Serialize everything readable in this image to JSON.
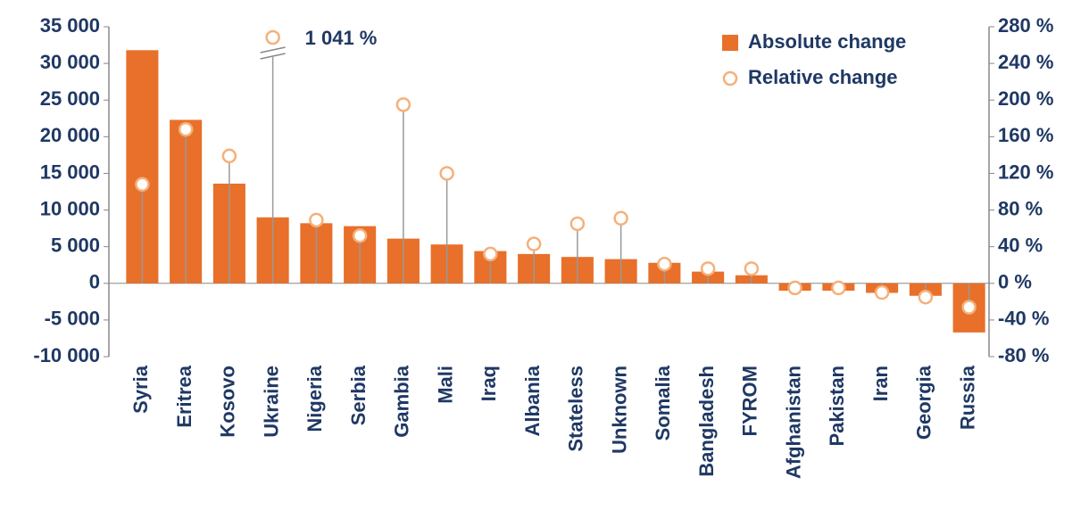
{
  "chart_data": {
    "type": "bar",
    "categories": [
      "Syria",
      "Eritrea",
      "Kosovo",
      "Ukraine",
      "Nigeria",
      "Serbia",
      "Gambia",
      "Mali",
      "Iraq",
      "Albania",
      "Stateless",
      "Unknown",
      "Somalia",
      "Bangladesh",
      "FYROM",
      "Afghanistan",
      "Pakistan",
      "Iran",
      "Georgia",
      "Russia"
    ],
    "series": [
      {
        "name": "Absolute change",
        "color": "#e8702a",
        "values": [
          31800,
          22300,
          13600,
          9000,
          8200,
          7800,
          6100,
          5300,
          4400,
          4000,
          3600,
          3300,
          2800,
          1600,
          1100,
          -1000,
          -1000,
          -1300,
          -1700,
          -6700
        ]
      },
      {
        "name": "Relative change",
        "color": "#f5b07a",
        "axis": "y2",
        "type": "scatter",
        "values": [
          108,
          168,
          139,
          1041,
          69,
          52,
          195,
          120,
          32,
          43,
          65,
          71,
          21,
          16,
          16,
          -5,
          -5,
          -10,
          -15,
          -26
        ],
        "value_labels": [
          null,
          null,
          null,
          "1 041 %",
          null,
          null,
          null,
          null,
          null,
          null,
          null,
          null,
          null,
          null,
          null,
          null,
          null,
          null,
          null,
          null
        ]
      }
    ],
    "ylim": [
      -10000,
      35000
    ],
    "yticks": [
      {
        "value": -10000,
        "label": "-10 000"
      },
      {
        "value": -5000,
        "label": "-5 000"
      },
      0,
      {
        "value": 5000,
        "label": "5 000"
      },
      {
        "value": 10000,
        "label": "10 000"
      },
      {
        "value": 15000,
        "label": "15 000"
      },
      {
        "value": 20000,
        "label": "20 000"
      },
      {
        "value": 25000,
        "label": "25 000"
      },
      {
        "value": 30000,
        "label": "30 000"
      },
      {
        "value": 35000,
        "label": "35 000"
      }
    ],
    "y2lim": [
      -80,
      280
    ],
    "y2ticks": [
      {
        "value": -80,
        "label": "-80 %"
      },
      {
        "value": -40,
        "label": "-40 %"
      },
      {
        "value": 0,
        "label": "0 %"
      },
      {
        "value": 40,
        "label": "40 %"
      },
      {
        "value": 80,
        "label": "80 %"
      },
      {
        "value": 120,
        "label": "120 %"
      },
      {
        "value": 160,
        "label": "160 %"
      },
      {
        "value": 200,
        "label": "200 %"
      },
      {
        "value": 240,
        "label": "240 %"
      },
      {
        "value": 280,
        "label": "280 %"
      }
    ],
    "legend": "top-right"
  }
}
